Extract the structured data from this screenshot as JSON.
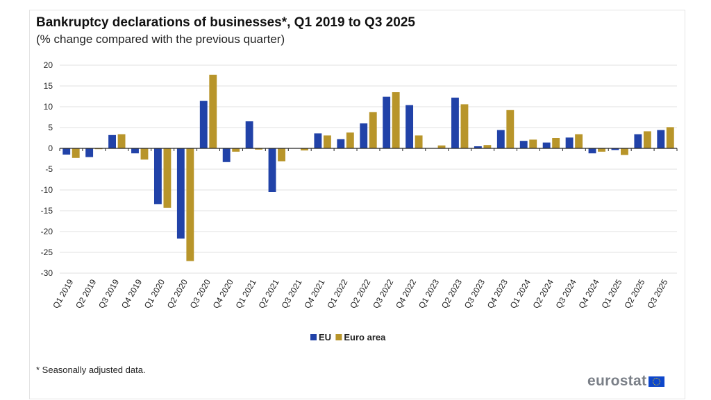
{
  "chart_data": {
    "type": "bar",
    "title": "Bankruptcy declarations of businesses*, Q1 2019 to Q3 2025",
    "subtitle": "(% change compared with the previous quarter)",
    "xlabel": "",
    "ylabel": "",
    "ylim": [
      -30,
      20
    ],
    "yticks": [
      20,
      15,
      10,
      5,
      0,
      -5,
      -10,
      -15,
      -20,
      -25,
      -30
    ],
    "grid": true,
    "legend_position": "bottom",
    "categories": [
      "Q1 2019",
      "Q2 2019",
      "Q3 2019",
      "Q4 2019",
      "Q1 2020",
      "Q2 2020",
      "Q3 2020",
      "Q4 2020",
      "Q1 2021",
      "Q2 2021",
      "Q3 2021",
      "Q4 2021",
      "Q1 2022",
      "Q2 2022",
      "Q3 2022",
      "Q4 2022",
      "Q1 2023",
      "Q2 2023",
      "Q3 2023",
      "Q4 2023",
      "Q1 2024",
      "Q2 2024",
      "Q3 2024",
      "Q4 2024",
      "Q1 2025",
      "Q2 2025",
      "Q3 2025"
    ],
    "series": [
      {
        "name": "EU",
        "color": "#2142a8",
        "values": [
          -1.5,
          -2.1,
          3.2,
          -1.2,
          -13.4,
          -21.7,
          11.4,
          -3.3,
          6.5,
          -10.5,
          0.0,
          3.6,
          2.2,
          6.0,
          12.4,
          10.4,
          0.0,
          12.2,
          0.5,
          4.4,
          1.8,
          1.4,
          2.6,
          -1.2,
          -0.4,
          3.4,
          4.4
        ]
      },
      {
        "name": "Euro area",
        "color": "#b8952a",
        "values": [
          -2.3,
          -0.2,
          3.4,
          -2.7,
          -14.3,
          -27.1,
          17.7,
          -0.8,
          -0.3,
          -3.1,
          -0.5,
          3.1,
          3.8,
          8.7,
          13.5,
          3.1,
          0.7,
          10.6,
          0.8,
          9.2,
          2.1,
          2.5,
          3.4,
          -0.8,
          -1.6,
          4.1,
          5.1
        ]
      }
    ],
    "footnote": "* Seasonally adjusted data.",
    "logo": "eurostat"
  }
}
